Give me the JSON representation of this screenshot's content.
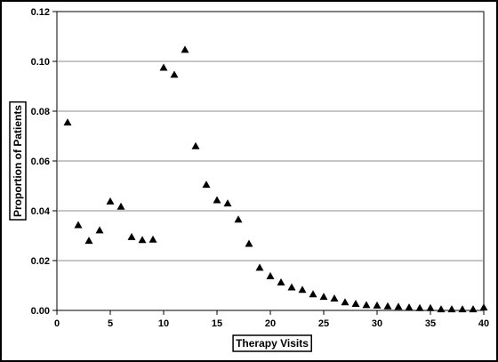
{
  "chart_data": {
    "type": "scatter",
    "title": "",
    "xlabel": "Therapy Visits",
    "ylabel": "Proportion of Patients",
    "xlim": [
      0,
      40
    ],
    "ylim": [
      0,
      0.12
    ],
    "xticks": [
      "0",
      "5",
      "10",
      "15",
      "20",
      "25",
      "30",
      "35",
      "40"
    ],
    "yticks": [
      "0.00",
      "0.02",
      "0.04",
      "0.06",
      "0.08",
      "0.10",
      "0.12"
    ],
    "grid": "horizontal",
    "marker": "triangle",
    "marker_color": "#000000",
    "series": [
      {
        "x": [
          1,
          2,
          3,
          4,
          5,
          6,
          7,
          8,
          9,
          10,
          11,
          12,
          13,
          14,
          15,
          16,
          17,
          18,
          19,
          20,
          21,
          22,
          23,
          24,
          25,
          26,
          27,
          28,
          29,
          30,
          31,
          32,
          33,
          34,
          35,
          36,
          37,
          38,
          39,
          40
        ],
        "y": [
          0.0755,
          0.0343,
          0.028,
          0.0322,
          0.0438,
          0.0417,
          0.0295,
          0.0283,
          0.0285,
          0.0975,
          0.0947,
          0.1047,
          0.066,
          0.0505,
          0.0443,
          0.043,
          0.0365,
          0.0268,
          0.0172,
          0.0138,
          0.0113,
          0.0093,
          0.0083,
          0.0065,
          0.0055,
          0.0048,
          0.0033,
          0.0027,
          0.0022,
          0.002,
          0.0017,
          0.0015,
          0.0012,
          0.001,
          0.001,
          0.0005,
          0.0005,
          0.0005,
          0.0005,
          0.0012
        ]
      }
    ]
  }
}
